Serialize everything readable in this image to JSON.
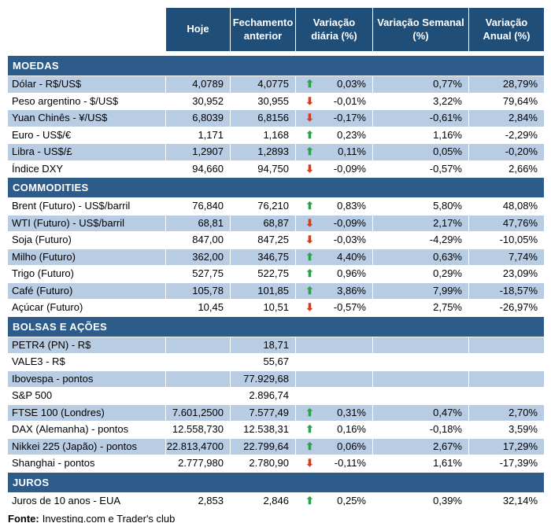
{
  "colors": {
    "header_bg": "#1F4E79",
    "section_bg": "#2E5C8A",
    "row_shaded": "#B8CCE4",
    "arrow_up": "#2E9E4F",
    "arrow_down": "#CC4125"
  },
  "icons": {
    "up": "⬆",
    "down": "⬇"
  },
  "chart_data": {
    "type": "table",
    "columns": [
      "Hoje",
      "Fechamento anterior",
      "Variação diária (%)",
      "Variação Semanal (%)",
      "Variação Anual (%)"
    ],
    "sections": [
      {
        "title": "MOEDAS",
        "first_row_shaded": true,
        "rows": [
          {
            "label": "Dólar - R$/US$",
            "hoje": "4,0789",
            "fechamento_anterior": "4,0775",
            "arrow": "up",
            "variacao_diaria": "0,03%",
            "variacao_semanal": "0,77%",
            "variacao_anual": "28,79%"
          },
          {
            "label": "Peso argentino - $/US$",
            "hoje": "30,952",
            "fechamento_anterior": "30,955",
            "arrow": "down",
            "variacao_diaria": "-0,01%",
            "variacao_semanal": "3,22%",
            "variacao_anual": "79,64%"
          },
          {
            "label": "Yuan Chinês - ¥/US$",
            "hoje": "6,8039",
            "fechamento_anterior": "6,8156",
            "arrow": "down",
            "variacao_diaria": "-0,17%",
            "variacao_semanal": "-0,61%",
            "variacao_anual": "2,84%"
          },
          {
            "label": "Euro - US$/€",
            "hoje": "1,171",
            "fechamento_anterior": "1,168",
            "arrow": "up",
            "variacao_diaria": "0,23%",
            "variacao_semanal": "1,16%",
            "variacao_anual": "-2,29%"
          },
          {
            "label": "Libra - US$/£",
            "hoje": "1,2907",
            "fechamento_anterior": "1,2893",
            "arrow": "up",
            "variacao_diaria": "0,11%",
            "variacao_semanal": "0,05%",
            "variacao_anual": "-0,20%"
          },
          {
            "label": "Índice DXY",
            "hoje": "94,660",
            "fechamento_anterior": "94,750",
            "arrow": "down",
            "variacao_diaria": "-0,09%",
            "variacao_semanal": "-0,57%",
            "variacao_anual": "2,66%"
          }
        ]
      },
      {
        "title": "COMMODITIES",
        "first_row_shaded": false,
        "rows": [
          {
            "label": "Brent (Futuro) - US$/barril",
            "hoje": "76,840",
            "fechamento_anterior": "76,210",
            "arrow": "up",
            "variacao_diaria": "0,83%",
            "variacao_semanal": "5,80%",
            "variacao_anual": "48,08%"
          },
          {
            "label": "WTI (Futuro) - US$/barril",
            "hoje": "68,81",
            "fechamento_anterior": "68,87",
            "arrow": "down",
            "variacao_diaria": "-0,09%",
            "variacao_semanal": "2,17%",
            "variacao_anual": "47,76%"
          },
          {
            "label": "Soja (Futuro)",
            "hoje": "847,00",
            "fechamento_anterior": "847,25",
            "arrow": "down",
            "variacao_diaria": "-0,03%",
            "variacao_semanal": "-4,29%",
            "variacao_anual": "-10,05%"
          },
          {
            "label": "Milho (Futuro)",
            "hoje": "362,00",
            "fechamento_anterior": "346,75",
            "arrow": "up",
            "variacao_diaria": "4,40%",
            "variacao_semanal": "0,63%",
            "variacao_anual": "7,74%"
          },
          {
            "label": "Trigo (Futuro)",
            "hoje": "527,75",
            "fechamento_anterior": "522,75",
            "arrow": "up",
            "variacao_diaria": "0,96%",
            "variacao_semanal": "0,29%",
            "variacao_anual": "23,09%"
          },
          {
            "label": "Café (Futuro)",
            "hoje": "105,78",
            "fechamento_anterior": "101,85",
            "arrow": "up",
            "variacao_diaria": "3,86%",
            "variacao_semanal": "7,99%",
            "variacao_anual": "-18,57%"
          },
          {
            "label": "Açúcar (Futuro)",
            "hoje": "10,45",
            "fechamento_anterior": "10,51",
            "arrow": "down",
            "variacao_diaria": "-0,57%",
            "variacao_semanal": "2,75%",
            "variacao_anual": "-26,97%"
          }
        ]
      },
      {
        "title": "BOLSAS E AÇÕES",
        "first_row_shaded": true,
        "rows": [
          {
            "label": "PETR4 (PN) - R$",
            "hoje": "",
            "fechamento_anterior": "18,71",
            "arrow": "",
            "variacao_diaria": "",
            "variacao_semanal": "",
            "variacao_anual": ""
          },
          {
            "label": "VALE3 - R$",
            "hoje": "",
            "fechamento_anterior": "55,67",
            "arrow": "",
            "variacao_diaria": "",
            "variacao_semanal": "",
            "variacao_anual": ""
          },
          {
            "label": "Ibovespa - pontos",
            "hoje": "",
            "fechamento_anterior": "77.929,68",
            "arrow": "",
            "variacao_diaria": "",
            "variacao_semanal": "",
            "variacao_anual": ""
          },
          {
            "label": "S&P 500",
            "hoje": "",
            "fechamento_anterior": "2.896,74",
            "arrow": "",
            "variacao_diaria": "",
            "variacao_semanal": "",
            "variacao_anual": ""
          },
          {
            "label": "FTSE 100 (Londres)",
            "hoje": "7.601,2500",
            "fechamento_anterior": "7.577,49",
            "arrow": "up",
            "variacao_diaria": "0,31%",
            "variacao_semanal": "0,47%",
            "variacao_anual": "2,70%"
          },
          {
            "label": "DAX (Alemanha) - pontos",
            "hoje": "12.558,730",
            "fechamento_anterior": "12.538,31",
            "arrow": "up",
            "variacao_diaria": "0,16%",
            "variacao_semanal": "-0,18%",
            "variacao_anual": "3,59%"
          },
          {
            "label": "Nikkei 225 (Japão) - pontos",
            "hoje": "22.813,4700",
            "fechamento_anterior": "22.799,64",
            "arrow": "up",
            "variacao_diaria": "0,06%",
            "variacao_semanal": "2,67%",
            "variacao_anual": "17,29%"
          },
          {
            "label": "Shanghai - pontos",
            "hoje": "2.777,980",
            "fechamento_anterior": "2.780,90",
            "arrow": "down",
            "variacao_diaria": "-0,11%",
            "variacao_semanal": "1,61%",
            "variacao_anual": "-17,39%"
          }
        ]
      },
      {
        "title": "JUROS",
        "first_row_shaded": false,
        "rows": [
          {
            "label": "Juros de 10 anos - EUA",
            "hoje": "2,853",
            "fechamento_anterior": "2,846",
            "arrow": "up",
            "variacao_diaria": "0,25%",
            "variacao_semanal": "0,39%",
            "variacao_anual": "32,14%"
          }
        ]
      }
    ],
    "footer": {
      "label": "Fonte:",
      "text": "Investing.com e Trader's club"
    }
  }
}
